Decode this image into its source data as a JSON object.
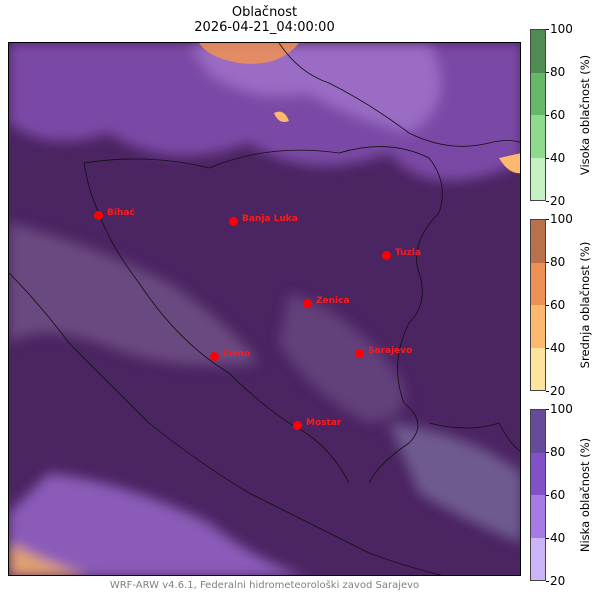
{
  "title": "Oblačnost",
  "subtitle": "2026-04-21_04:00:00",
  "footer": "WRF-ARW v4.6.1, Federalni hidrometeorološki zavod Sarajevo",
  "cities": [
    "Bihać",
    "Banja Luka",
    "Tuzla",
    "Zenica",
    "Livno",
    "Sarajevo",
    "Mostar"
  ],
  "colorbars": [
    {
      "label": "Visoka oblačnost (%)",
      "ticks": [
        "20",
        "40",
        "60",
        "80",
        "100"
      ],
      "colors": [
        "#c5f2c2",
        "#8ddb8b",
        "#64b866",
        "#4f8c53"
      ]
    },
    {
      "label": "Srednja oblačnost (%)",
      "ticks": [
        "20",
        "40",
        "60",
        "80",
        "100"
      ],
      "colors": [
        "#fde49c",
        "#fdb96d",
        "#ee9054",
        "#b9714c"
      ]
    },
    {
      "label": "Niska oblačnost (%)",
      "ticks": [
        "20",
        "40",
        "60",
        "80",
        "100"
      ],
      "colors": [
        "#cbb4f8",
        "#a67be5",
        "#8251c9",
        "#654b9a"
      ]
    }
  ]
}
